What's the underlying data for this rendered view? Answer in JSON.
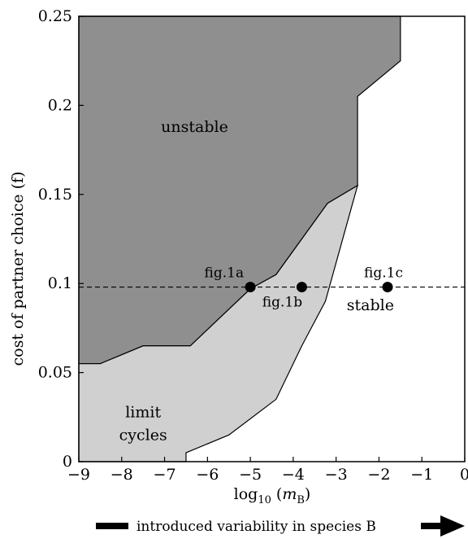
{
  "chart_data": {
    "type": "area",
    "title": "",
    "xlabel": "log",
    "xlabel_sub": "10",
    "xlabel_var": "m",
    "xlabel_var_sub": "B",
    "ylabel": "cost of partner choice (f)",
    "xlim": [
      -9,
      0
    ],
    "ylim": [
      0,
      0.25
    ],
    "xticks": [
      -9,
      -8,
      -7,
      -6,
      -5,
      -4,
      -3,
      -2,
      -1,
      0
    ],
    "xtick_labels": [
      "−9",
      "−8",
      "−7",
      "−6",
      "−5",
      "−4",
      "−3",
      "−2",
      "−1",
      "0"
    ],
    "yticks": [
      0,
      0.05,
      0.1,
      0.15,
      0.2,
      0.25
    ],
    "ytick_labels": [
      "0",
      "0.05",
      "0.1",
      "0.15",
      "0.2",
      "0.25"
    ],
    "grid": false,
    "regions": [
      {
        "name": "unstable",
        "color": "#8f8f8f",
        "label_at": [
          -6.3,
          0.185
        ],
        "boundary": [
          [
            -9,
            0.25
          ],
          [
            -1.5,
            0.25
          ],
          [
            -1.5,
            0.225
          ],
          [
            -2.5,
            0.205
          ],
          [
            -2.5,
            0.155
          ],
          [
            -3.2,
            0.145
          ],
          [
            -3.8,
            0.125
          ],
          [
            -4.4,
            0.105
          ],
          [
            -5.0,
            0.097
          ],
          [
            -6.4,
            0.065
          ],
          [
            -7.5,
            0.065
          ],
          [
            -8.5,
            0.055
          ],
          [
            -9,
            0.055
          ]
        ]
      },
      {
        "name": "limit cycles",
        "label_lines": [
          "limit",
          "cycles"
        ],
        "color": "#d0d0d0",
        "label_at": [
          -7.5,
          0.025
        ],
        "boundary": [
          [
            -9,
            0.055
          ],
          [
            -8.5,
            0.055
          ],
          [
            -7.5,
            0.065
          ],
          [
            -6.4,
            0.065
          ],
          [
            -5.0,
            0.097
          ],
          [
            -4.4,
            0.105
          ],
          [
            -3.8,
            0.125
          ],
          [
            -3.2,
            0.145
          ],
          [
            -2.5,
            0.155
          ],
          [
            -3.25,
            0.09
          ],
          [
            -3.8,
            0.065
          ],
          [
            -4.4,
            0.035
          ],
          [
            -5.5,
            0.015
          ],
          [
            -6.5,
            0.005
          ],
          [
            -6.5,
            0
          ],
          [
            -9,
            0
          ]
        ]
      },
      {
        "name": "stable",
        "color": "#ffffff",
        "label_at": [
          -2.2,
          0.085
        ]
      }
    ],
    "reference_line": {
      "y": 0.098,
      "style": "dashed"
    },
    "points": [
      {
        "label": "fig.1a",
        "x": -5.0,
        "y": 0.098,
        "label_pos": "above-left"
      },
      {
        "label": "fig.1b",
        "x": -3.8,
        "y": 0.098,
        "label_pos": "below"
      },
      {
        "label": "fig.1c",
        "x": -1.8,
        "y": 0.098,
        "label_pos": "above"
      }
    ]
  },
  "footer": {
    "caption": "introduced variability in species B"
  }
}
